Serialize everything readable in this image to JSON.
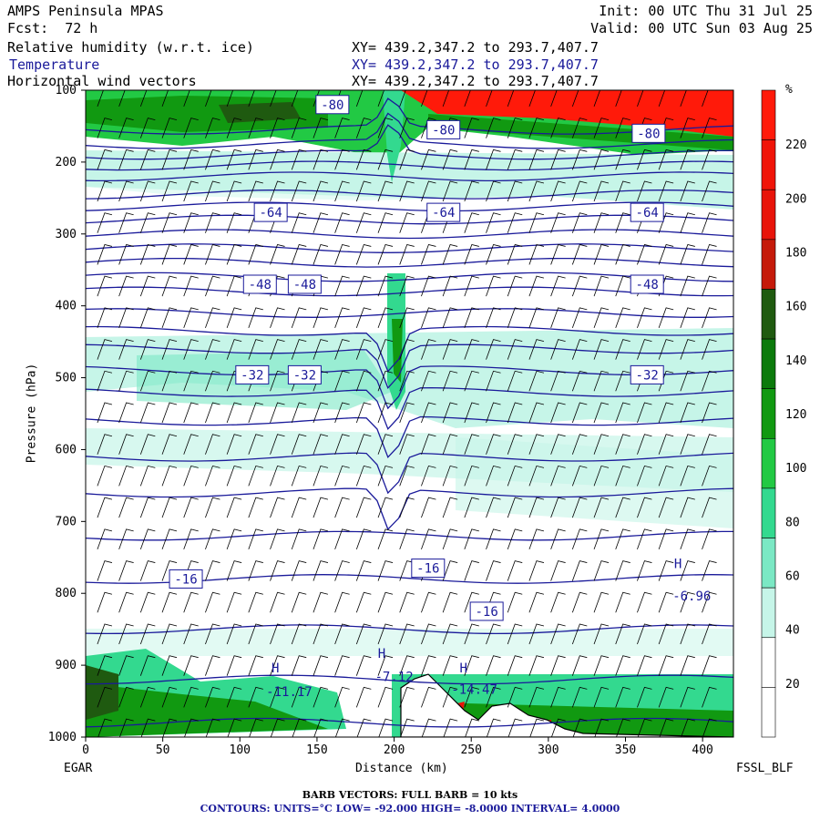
{
  "header": {
    "model": "AMPS Peninsula MPAS",
    "init": "Init: 00 UTC Thu 31 Jul 25",
    "fcst": "Fcst:  72 h",
    "valid": "Valid: 00 UTC Sun 03 Aug 25",
    "field1": "Relative humidity (w.r.t. ice)",
    "field2": "Temperature",
    "field3": "Horizontal wind vectors",
    "xy": "XY= 439.2,347.2 to 293.7,407.7"
  },
  "footer": {
    "barb": "BARB VECTORS:  FULL BARB = 10 kts",
    "contours": "CONTOURS:  UNITS=°C  LOW= -92.000      HIGH= -8.0000      INTERVAL=    4.0000"
  },
  "endpoints": {
    "left": "EGAR",
    "right": "FSSL_BLF"
  },
  "colors": {
    "temp_contour": "#1a1a9a",
    "rh_scale": [
      "#ffffff",
      "#ffffff",
      "#c6f5e8",
      "#7be8c4",
      "#33d98f",
      "#22c944",
      "#119911",
      "#0b7a0b",
      "#1f5a10",
      "#c51a0a",
      "#e8140a",
      "#f01408",
      "#ff1a0a"
    ]
  },
  "chart_data": {
    "type": "cross-section",
    "xlabel": "Distance (km)",
    "ylabel": "Pressure (hPa)",
    "xlim": [
      0,
      420
    ],
    "ylim": [
      1000,
      100
    ],
    "xticks": [
      0,
      50,
      100,
      150,
      200,
      250,
      300,
      350,
      400
    ],
    "yticks": [
      100,
      200,
      300,
      400,
      500,
      600,
      700,
      800,
      900,
      1000
    ],
    "colorbar": {
      "unit": "%",
      "ticks": [
        20,
        40,
        60,
        80,
        100,
        120,
        140,
        160,
        180,
        200,
        220
      ]
    },
    "temperature_labels": [
      {
        "text": "-80",
        "x": 160,
        "p": 120
      },
      {
        "text": "-80",
        "x": 232,
        "p": 155
      },
      {
        "text": "-80",
        "x": 365,
        "p": 160
      },
      {
        "text": "-64",
        "x": 120,
        "p": 270
      },
      {
        "text": "-64",
        "x": 232,
        "p": 270
      },
      {
        "text": "-64",
        "x": 364,
        "p": 270
      },
      {
        "text": "-48",
        "x": 113,
        "p": 370
      },
      {
        "text": "-48",
        "x": 142,
        "p": 370
      },
      {
        "text": "-48",
        "x": 364,
        "p": 370
      },
      {
        "text": "-32",
        "x": 108,
        "p": 496
      },
      {
        "text": "-32",
        "x": 142,
        "p": 496
      },
      {
        "text": "-32",
        "x": 364,
        "p": 496
      },
      {
        "text": "-16",
        "x": 65,
        "p": 780
      },
      {
        "text": "-16",
        "x": 222,
        "p": 765
      },
      {
        "text": "-16",
        "x": 260,
        "p": 825
      }
    ],
    "extrema": [
      {
        "text": "H",
        "x": 123,
        "p": 910
      },
      {
        "text": "-11.17",
        "x": 132,
        "p": 943
      },
      {
        "text": "H",
        "x": 192,
        "p": 890
      },
      {
        "text": "-7.12",
        "x": 200,
        "p": 922
      },
      {
        "text": "H",
        "x": 245,
        "p": 910
      },
      {
        "text": "-14.47",
        "x": 252,
        "p": 940
      },
      {
        "text": "H",
        "x": 384,
        "p": 765
      },
      {
        "text": "-6.96",
        "x": 393,
        "p": 810
      }
    ]
  }
}
